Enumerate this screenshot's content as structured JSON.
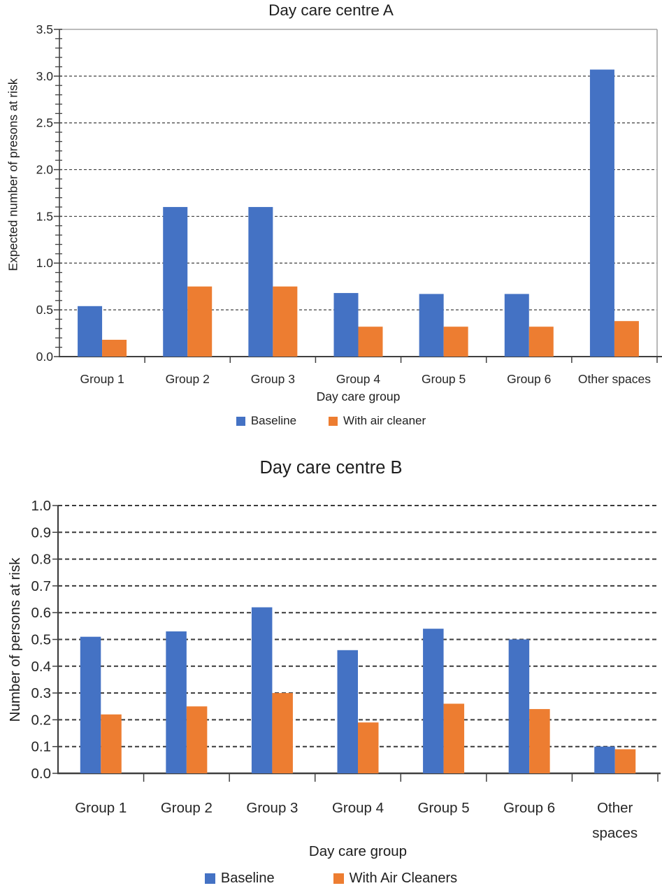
{
  "chart_data": [
    {
      "type": "bar",
      "title": "Day care centre A",
      "xlabel": "Day care group",
      "ylabel": "Expected number of presons at risk",
      "categories": [
        "Group 1",
        "Group 2",
        "Group 3",
        "Group 4",
        "Group 5",
        "Group 6",
        "Other spaces"
      ],
      "series": [
        {
          "name": "Baseline",
          "color": "#4472C4",
          "values": [
            0.54,
            1.6,
            1.6,
            0.68,
            0.67,
            0.67,
            3.07
          ]
        },
        {
          "name": "With air cleaner",
          "color": "#ED7D31",
          "values": [
            0.18,
            0.75,
            0.75,
            0.32,
            0.32,
            0.32,
            0.38
          ]
        }
      ],
      "ylim": [
        0,
        3.5
      ],
      "ytick_step": 0.5,
      "minor_tick_step": 0.1,
      "ytick_labels": [
        "0.0",
        "0.5",
        "1.0",
        "1.5",
        "2.0",
        "2.5",
        "3.0",
        "3.5"
      ],
      "grid": "dashed-horizontal",
      "legend_position": "bottom"
    },
    {
      "type": "bar",
      "title": "Day care centre B",
      "xlabel": "Day care group",
      "ylabel": "Number of persons at risk",
      "categories": [
        "Group 1",
        "Group 2",
        "Group 3",
        "Group 4",
        "Group 5",
        "Group 6",
        "Other spaces"
      ],
      "series": [
        {
          "name": "Baseline",
          "color": "#4472C4",
          "values": [
            0.51,
            0.53,
            0.62,
            0.46,
            0.54,
            0.5,
            0.1
          ]
        },
        {
          "name": "With Air Cleaners",
          "color": "#ED7D31",
          "values": [
            0.22,
            0.25,
            0.3,
            0.19,
            0.26,
            0.24,
            0.09
          ]
        }
      ],
      "ylim": [
        0,
        1.0
      ],
      "ytick_step": 0.1,
      "minor_tick_step": null,
      "ytick_labels": [
        "0.0",
        "0.1",
        "0.2",
        "0.3",
        "0.4",
        "0.5",
        "0.6",
        "0.7",
        "0.8",
        "0.9",
        "1.0"
      ],
      "grid": "dashed-horizontal",
      "legend_position": "bottom"
    }
  ]
}
